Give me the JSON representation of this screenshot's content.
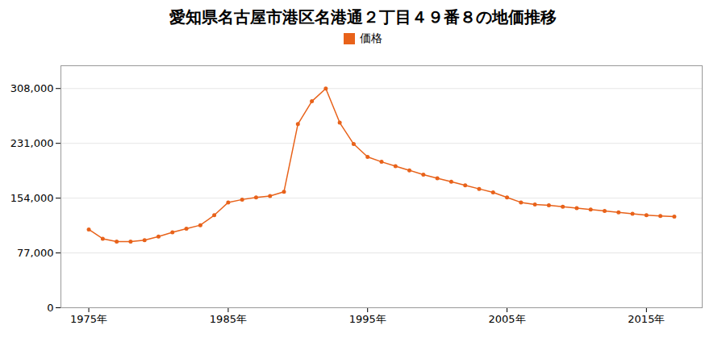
{
  "chart_data": {
    "type": "line",
    "title": "愛知県名古屋市港区名港通２丁目４９番８の地価推移",
    "x": [
      1975,
      1976,
      1977,
      1978,
      1979,
      1980,
      1981,
      1982,
      1983,
      1984,
      1985,
      1986,
      1987,
      1988,
      1989,
      1990,
      1991,
      1992,
      1993,
      1994,
      1995,
      1996,
      1997,
      1998,
      1999,
      2000,
      2001,
      2002,
      2003,
      2004,
      2005,
      2006,
      2007,
      2008,
      2009,
      2010,
      2011,
      2012,
      2013,
      2014,
      2015,
      2016,
      2017
    ],
    "series": [
      {
        "name": "価格",
        "color": "#e8621a",
        "marker": "circle",
        "values": [
          110000,
          97000,
          93000,
          93000,
          95000,
          100000,
          106000,
          111000,
          116000,
          130000,
          148000,
          152000,
          155000,
          157000,
          163000,
          258000,
          290000,
          308000,
          260000,
          230000,
          212000,
          205000,
          199000,
          193000,
          187000,
          182000,
          177000,
          172000,
          167000,
          162000,
          155000,
          148000,
          145000,
          144000,
          142000,
          140000,
          138000,
          136000,
          134000,
          132000,
          130000,
          129000,
          128000
        ]
      }
    ],
    "xlim": [
      1973,
      2019
    ],
    "xticks": [
      {
        "value": 1975,
        "label": "1975年"
      },
      {
        "value": 1985,
        "label": "1985年"
      },
      {
        "value": 1995,
        "label": "1995年"
      },
      {
        "value": 2005,
        "label": "2005年"
      },
      {
        "value": 2015,
        "label": "2015年"
      }
    ],
    "ylim": [
      0,
      340000
    ],
    "yticks": [
      0,
      {
        "value": 77000,
        "label": "77,000"
      },
      {
        "value": 154000,
        "label": "154,000"
      },
      {
        "value": 231000,
        "label": "231,000"
      },
      {
        "value": 308000,
        "label": "308,000"
      }
    ],
    "grid": "y",
    "legend": "top"
  }
}
